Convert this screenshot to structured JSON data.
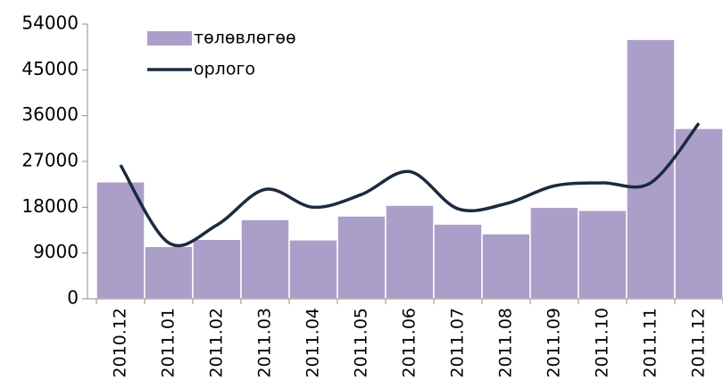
{
  "chart_data": {
    "type": "bar-line",
    "categories": [
      "2010.12",
      "2011.01",
      "2011.02",
      "2011.03",
      "2011.04",
      "2011.05",
      "2011.06",
      "2011.07",
      "2011.08",
      "2011.09",
      "2011.10",
      "2011.11",
      "2011.12"
    ],
    "series": [
      {
        "name": "төлөвлөгөө",
        "type": "bar",
        "color": "#ab9fca",
        "values": [
          23000,
          10300,
          11700,
          15600,
          11600,
          16300,
          18400,
          14700,
          12800,
          18000,
          17400,
          51000,
          33500
        ]
      },
      {
        "name": "орлого",
        "type": "line",
        "color": "#1b2a3f",
        "values": [
          26300,
          11000,
          14500,
          21500,
          18000,
          20500,
          25000,
          17700,
          18700,
          22200,
          22800,
          22800,
          34500
        ]
      }
    ],
    "ylim": [
      0,
      54000
    ],
    "yticks": [
      0,
      9000,
      18000,
      27000,
      36000,
      45000,
      54000
    ],
    "grid": false,
    "legend": "upper left"
  }
}
